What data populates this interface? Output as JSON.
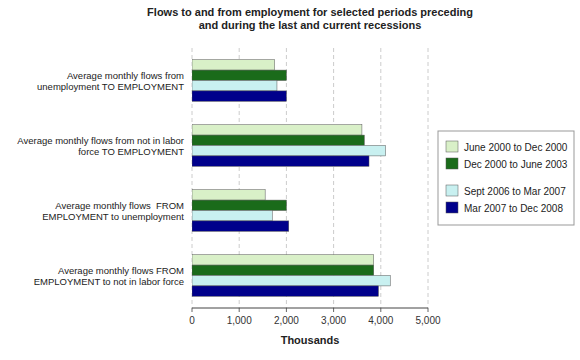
{
  "chart_data": {
    "type": "bar",
    "orientation": "horizontal",
    "title": "Flows to and from employment for selected periods preceding\nand during the last and current recessions",
    "categories": [
      "Average monthly flows from\nunemployment TO EMPLOYMENT",
      "Average monthly flows from not in labor\nforce TO EMPLOYMENT",
      "Average monthly flows  FROM\nEMPLOYMENT to unemployment",
      "Average monthly flows FROM\nEMPLOYMENT to not in labor force"
    ],
    "series": [
      {
        "name": "June 2000 to Dec 2000",
        "color": "#d9f0c8",
        "values": [
          1750,
          3600,
          1550,
          3850
        ]
      },
      {
        "name": "Dec 2000 to June 2003",
        "color": "#1a6b1a",
        "values": [
          2000,
          3650,
          2000,
          3850
        ]
      },
      {
        "name": "Sept 2006 to Mar 2007",
        "color": "#c8f0f0",
        "values": [
          1800,
          4100,
          1700,
          4200
        ]
      },
      {
        "name": "Mar 2007 to Dec 2008",
        "color": "#00008b",
        "values": [
          2000,
          3750,
          2050,
          3950
        ]
      }
    ],
    "x_label": "Thousands",
    "xlim": [
      0,
      5000
    ],
    "xticks": [
      0,
      {
        "value": 1000,
        "label": "1,000"
      },
      {
        "value": 2000,
        "label": "2,000"
      },
      {
        "value": 3000,
        "label": "3,000"
      },
      {
        "value": 4000,
        "label": "4,000"
      },
      {
        "value": 5000,
        "label": "5,000"
      }
    ],
    "grid": true,
    "legend": "right"
  }
}
